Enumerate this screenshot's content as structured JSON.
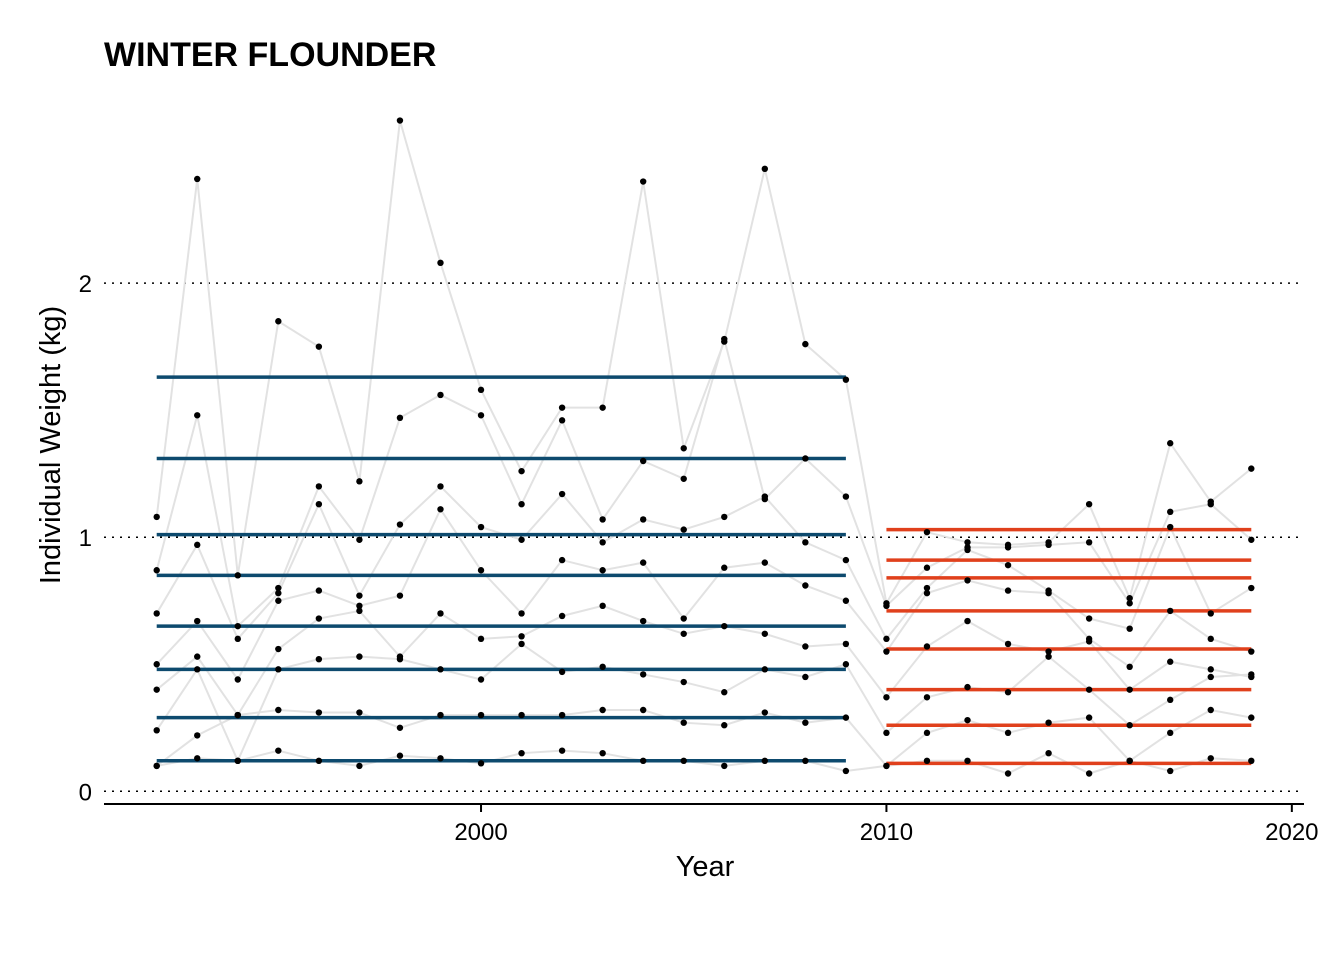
{
  "chart_data": {
    "type": "line",
    "title": "WINTER FLOUNDER",
    "xlabel": "Year",
    "ylabel": "Individual Weight (kg)",
    "xlim": [
      1990.7,
      2020.3
    ],
    "ylim": [
      -0.05,
      2.65
    ],
    "x_ticks": [
      2000,
      2010,
      2020
    ],
    "y_ticks": [
      0,
      1,
      2
    ],
    "grid": "dotted horizontal at y ticks",
    "colors": {
      "period1": "#0d4a6e",
      "period2": "#e0401c",
      "trace": "#e2e2e2",
      "point": "#000000"
    },
    "x": [
      1992,
      1993,
      1994,
      1995,
      1996,
      1997,
      1998,
      1999,
      2000,
      2001,
      2002,
      2003,
      2004,
      2005,
      2006,
      2007,
      2008,
      2009,
      2010,
      2011,
      2012,
      2013,
      2014,
      2015,
      2016,
      2017,
      2018,
      2019
    ],
    "series": [
      {
        "values": [
          1.08,
          2.41,
          0.85,
          1.85,
          1.75,
          1.22,
          2.64,
          2.08,
          1.58,
          1.26,
          1.51,
          1.51,
          2.4,
          1.35,
          1.77,
          2.45,
          1.76,
          1.62,
          0.74,
          1.02,
          0.98,
          0.97,
          0.98,
          1.13,
          0.76,
          1.37,
          1.14,
          1.27
        ]
      },
      {
        "values": [
          0.87,
          1.48,
          0.65,
          0.8,
          1.2,
          0.99,
          1.47,
          1.56,
          1.48,
          1.13,
          1.46,
          1.07,
          1.3,
          1.23,
          1.78,
          1.15,
          1.31,
          1.16,
          0.73,
          0.88,
          0.96,
          0.96,
          0.97,
          0.98,
          0.74,
          1.1,
          1.13,
          0.99
        ]
      },
      {
        "values": [
          0.7,
          0.97,
          0.6,
          0.78,
          1.13,
          0.77,
          1.05,
          1.2,
          1.04,
          0.99,
          1.17,
          0.98,
          1.07,
          1.03,
          1.08,
          1.16,
          0.98,
          0.91,
          0.6,
          0.8,
          0.95,
          0.89,
          0.79,
          0.68,
          0.64,
          1.04,
          0.7,
          0.8
        ]
      },
      {
        "values": [
          0.5,
          0.67,
          0.44,
          0.75,
          0.79,
          0.73,
          0.77,
          1.11,
          0.87,
          0.7,
          0.91,
          0.87,
          0.9,
          0.68,
          0.88,
          0.9,
          0.81,
          0.75,
          0.55,
          0.78,
          0.83,
          0.79,
          0.78,
          0.6,
          0.49,
          0.71,
          0.6,
          0.55
        ]
      },
      {
        "values": [
          0.4,
          0.53,
          0.3,
          0.56,
          0.68,
          0.71,
          0.53,
          0.7,
          0.6,
          0.61,
          0.69,
          0.73,
          0.67,
          0.62,
          0.65,
          0.62,
          0.57,
          0.58,
          0.37,
          0.57,
          0.67,
          0.58,
          0.55,
          0.59,
          0.4,
          0.51,
          0.48,
          0.45
        ]
      },
      {
        "values": [
          0.24,
          0.48,
          0.12,
          0.48,
          0.52,
          0.53,
          0.52,
          0.48,
          0.44,
          0.58,
          0.47,
          0.49,
          0.46,
          0.43,
          0.39,
          0.48,
          0.45,
          0.5,
          0.23,
          0.37,
          0.41,
          0.39,
          0.53,
          0.4,
          0.26,
          0.36,
          0.45,
          0.46
        ]
      },
      {
        "values": [
          0.1,
          0.22,
          0.3,
          0.32,
          0.31,
          0.31,
          0.25,
          0.3,
          0.3,
          0.3,
          0.3,
          0.32,
          0.32,
          0.27,
          0.26,
          0.31,
          0.27,
          0.29,
          0.1,
          0.23,
          0.28,
          0.23,
          0.27,
          0.29,
          0.12,
          0.23,
          0.32,
          0.29
        ]
      },
      {
        "values": [
          0.1,
          0.13,
          0.12,
          0.16,
          0.12,
          0.1,
          0.14,
          0.13,
          0.11,
          0.15,
          0.16,
          0.15,
          0.12,
          0.12,
          0.1,
          0.12,
          0.12,
          0.08,
          0.1,
          0.12,
          0.12,
          0.07,
          0.15,
          0.07,
          0.12,
          0.08,
          0.13,
          0.12
        ]
      }
    ],
    "reference_lines": [
      {
        "period": 1,
        "x_range": [
          1992,
          2009
        ],
        "color": "#0d4a6e",
        "values": [
          1.63,
          1.31,
          1.01,
          0.85,
          0.65,
          0.48,
          0.29,
          0.12
        ]
      },
      {
        "period": 2,
        "x_range": [
          2010,
          2019
        ],
        "color": "#e0401c",
        "values": [
          1.03,
          0.91,
          0.84,
          0.71,
          0.56,
          0.4,
          0.26,
          0.11
        ]
      }
    ]
  }
}
